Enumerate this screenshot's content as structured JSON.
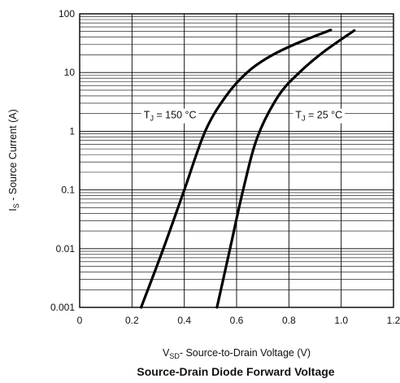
{
  "chart_data": {
    "type": "line",
    "title": "Source-Drain Diode Forward Voltage",
    "xlabel": "V_SD - Source-to-Drain Voltage (V)",
    "xlabel_parts": {
      "main": "V",
      "sub": "SD",
      "rest": "- Source-to-Drain Voltage (V)"
    },
    "ylabel": "I_S - Source Current (A)",
    "ylabel_parts": {
      "main": "I",
      "sub": "S",
      "rest": " - Source Current (A)"
    },
    "xlim": [
      0,
      1.2
    ],
    "ylim": [
      0.001,
      100
    ],
    "y_scale": "log",
    "grid": true,
    "x_ticks": [
      0,
      0.2,
      0.4,
      0.6,
      0.8,
      1.0,
      1.2
    ],
    "x_tick_labels": [
      "0",
      "0.2",
      "0.4",
      "0.6",
      "0.8",
      "1.0",
      "1.2"
    ],
    "y_ticks": [
      0.001,
      0.01,
      0.1,
      1,
      10,
      100
    ],
    "y_tick_labels": [
      "0.001",
      "0.01",
      "0.1",
      "1",
      "10",
      "100"
    ],
    "series": [
      {
        "name": "T_J = 150 °C",
        "name_parts": {
          "main": "T",
          "sub": "J",
          "rest": " = 150 °C"
        },
        "label_at": {
          "x": 0.245,
          "y": 1.65
        },
        "points": [
          {
            "x": 0.235,
            "y": 0.001
          },
          {
            "x": 0.32,
            "y": 0.01
          },
          {
            "x": 0.4,
            "y": 0.1
          },
          {
            "x": 0.48,
            "y": 1.0
          },
          {
            "x": 0.56,
            "y": 4.0
          },
          {
            "x": 0.64,
            "y": 10
          },
          {
            "x": 0.72,
            "y": 18
          },
          {
            "x": 0.82,
            "y": 30
          },
          {
            "x": 0.96,
            "y": 53
          }
        ]
      },
      {
        "name": "T_J = 25 °C",
        "name_parts": {
          "main": "T",
          "sub": "J",
          "rest": " = 25 °C"
        },
        "label_at": {
          "x": 0.825,
          "y": 1.65
        },
        "points": [
          {
            "x": 0.525,
            "y": 0.001
          },
          {
            "x": 0.575,
            "y": 0.01
          },
          {
            "x": 0.625,
            "y": 0.1
          },
          {
            "x": 0.68,
            "y": 0.8
          },
          {
            "x": 0.76,
            "y": 4.0
          },
          {
            "x": 0.84,
            "y": 10
          },
          {
            "x": 0.93,
            "y": 22
          },
          {
            "x": 1.05,
            "y": 52
          }
        ]
      }
    ]
  }
}
